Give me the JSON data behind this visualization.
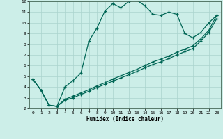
{
  "xlabel": "Humidex (Indice chaleur)",
  "xlim": [
    -0.5,
    23.5
  ],
  "ylim": [
    2,
    12
  ],
  "xticks": [
    0,
    1,
    2,
    3,
    4,
    5,
    6,
    7,
    8,
    9,
    10,
    11,
    12,
    13,
    14,
    15,
    16,
    17,
    18,
    19,
    20,
    21,
    22,
    23
  ],
  "yticks": [
    2,
    3,
    4,
    5,
    6,
    7,
    8,
    9,
    10,
    11,
    12
  ],
  "bg_color": "#cceee8",
  "grid_color": "#aad4ce",
  "line_color": "#006655",
  "line1_y": [
    4.7,
    3.7,
    2.3,
    2.2,
    4.0,
    4.6,
    5.3,
    8.3,
    9.5,
    11.1,
    11.8,
    11.4,
    12.0,
    12.1,
    11.6,
    10.8,
    10.7,
    11.0,
    10.8,
    9.0,
    8.6,
    9.1,
    10.0,
    10.7
  ],
  "line2_y": [
    4.7,
    3.7,
    2.3,
    2.2,
    2.85,
    3.15,
    3.45,
    3.75,
    4.1,
    4.4,
    4.75,
    5.05,
    5.35,
    5.65,
    6.0,
    6.35,
    6.6,
    6.9,
    7.25,
    7.55,
    7.85,
    8.5,
    9.3,
    10.7
  ],
  "line3_y": [
    4.7,
    3.7,
    2.3,
    2.2,
    2.75,
    3.0,
    3.3,
    3.6,
    3.95,
    4.25,
    4.55,
    4.85,
    5.15,
    5.45,
    5.8,
    6.1,
    6.35,
    6.65,
    7.0,
    7.3,
    7.6,
    8.3,
    9.1,
    10.4
  ]
}
